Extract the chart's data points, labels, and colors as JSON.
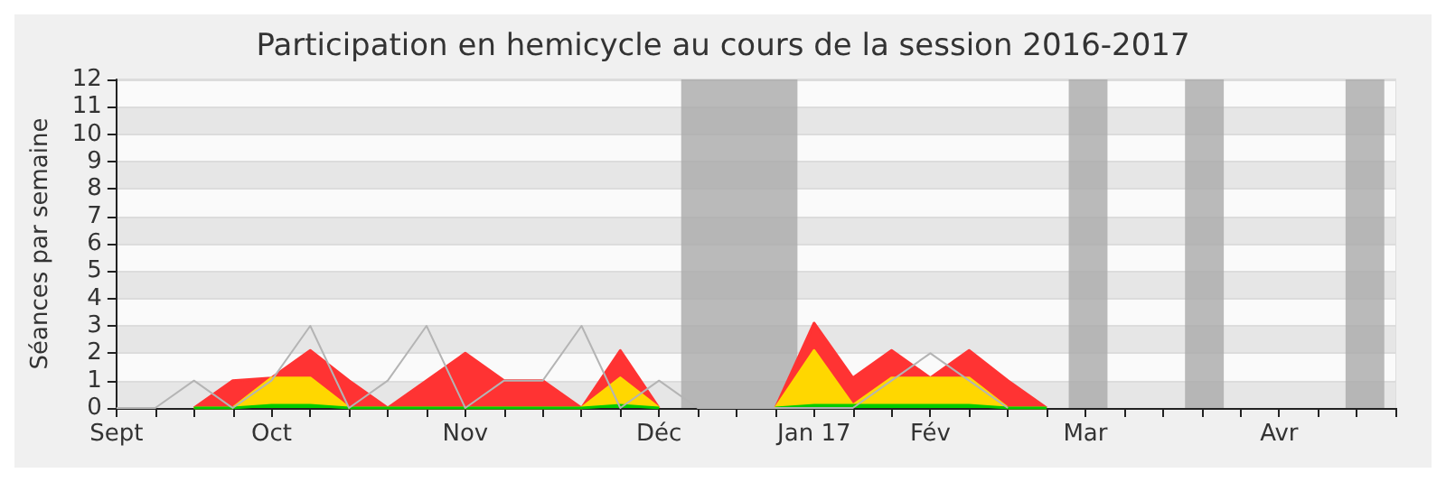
{
  "chart_data": {
    "type": "area",
    "title": "Participation en hemicycle au cours de la session 2016-2017",
    "ylabel": "Séances par semaine",
    "x": [
      "2016-09-07",
      "2016-09-14",
      "2016-09-21",
      "2016-09-28",
      "2016-10-05",
      "2016-10-12",
      "2016-10-19",
      "2016-10-26",
      "2016-11-02",
      "2016-11-09",
      "2016-11-16",
      "2016-11-23",
      "2016-11-30",
      "2016-12-07",
      "2016-12-14",
      "2016-12-21",
      "2016-12-28",
      "2017-01-04",
      "2017-01-11",
      "2017-01-18",
      "2017-01-25",
      "2017-02-01",
      "2017-02-08",
      "2017-02-15",
      "2017-02-22"
    ],
    "stacked": true,
    "series": [
      {
        "color": "#00cc00",
        "values": [
          null,
          null,
          0,
          0,
          0.1,
          0.1,
          0,
          0,
          0,
          0,
          0,
          0,
          0,
          0.1,
          0,
          null,
          null,
          0,
          0.1,
          0.1,
          0.1,
          0.1,
          0.1,
          0,
          0
        ]
      },
      {
        "color": "#ffd700",
        "values": [
          null,
          null,
          0,
          0,
          1,
          1,
          0,
          0,
          0,
          0,
          0,
          0,
          0,
          1,
          0,
          null,
          null,
          0,
          2,
          0,
          1,
          1,
          1,
          0,
          0
        ]
      },
      {
        "color": "#ff3333",
        "values": [
          null,
          null,
          0,
          1,
          0,
          1,
          1,
          0,
          1,
          2,
          1,
          1,
          0,
          1,
          0,
          null,
          null,
          0,
          1,
          1,
          1,
          0,
          1,
          1,
          0
        ]
      },
      {
        "type": "line",
        "color": "#b4b4b4",
        "values": [
          0,
          0,
          1,
          0,
          1,
          3,
          0,
          1,
          3,
          0,
          1,
          1,
          3,
          0,
          1,
          0,
          0,
          0,
          0,
          0,
          1,
          2,
          1,
          0,
          null
        ]
      }
    ],
    "xlim": [
      "2016-09-07",
      "2017-04-26"
    ],
    "xticks": [
      {
        "value": "2016-09-07",
        "label": "Sept"
      },
      {
        "value": "2016-09-14",
        "label": null
      },
      {
        "value": "2016-09-21",
        "label": null
      },
      {
        "value": "2016-09-28",
        "label": null
      },
      {
        "value": "2016-10-05",
        "label": "Oct"
      },
      {
        "value": "2016-10-12",
        "label": null
      },
      {
        "value": "2016-10-19",
        "label": null
      },
      {
        "value": "2016-10-26",
        "label": null
      },
      {
        "value": "2016-11-02",
        "label": null
      },
      {
        "value": "2016-11-09",
        "label": "Nov"
      },
      {
        "value": "2016-11-16",
        "label": null
      },
      {
        "value": "2016-11-23",
        "label": null
      },
      {
        "value": "2016-11-30",
        "label": null
      },
      {
        "value": "2016-12-07",
        "label": null
      },
      {
        "value": "2016-12-14",
        "label": "Déc"
      },
      {
        "value": "2016-12-21",
        "label": null
      },
      {
        "value": "2016-12-28",
        "label": null
      },
      {
        "value": "2017-01-04",
        "label": null
      },
      {
        "value": "2017-01-11",
        "label": "Jan 17"
      },
      {
        "value": "2017-01-18",
        "label": null
      },
      {
        "value": "2017-01-25",
        "label": null
      },
      {
        "value": "2017-02-01",
        "label": "Fév"
      },
      {
        "value": "2017-02-08",
        "label": null
      },
      {
        "value": "2017-02-15",
        "label": null
      },
      {
        "value": "2017-02-22",
        "label": null
      },
      {
        "value": "2017-03-01",
        "label": "Mar"
      },
      {
        "value": "2017-03-08",
        "label": null
      },
      {
        "value": "2017-03-15",
        "label": null
      },
      {
        "value": "2017-03-22",
        "label": null
      },
      {
        "value": "2017-03-29",
        "label": null
      },
      {
        "value": "2017-04-05",
        "label": "Avr"
      },
      {
        "value": "2017-04-12",
        "label": null
      },
      {
        "value": "2017-04-19",
        "label": null
      },
      {
        "value": "2017-04-26",
        "label": null
      }
    ],
    "ylim": [
      0,
      12
    ],
    "yticks": [
      0,
      1,
      2,
      3,
      4,
      5,
      6,
      7,
      8,
      9,
      10,
      11,
      12
    ],
    "grid": "y",
    "bands": [
      {
        "axis": "x",
        "from": "2016-12-18",
        "to": "2017-01-08",
        "color": "#aaaaaa"
      },
      {
        "axis": "x",
        "from": "2017-02-26",
        "to": "2017-03-05",
        "color": "#aaaaaa"
      },
      {
        "axis": "x",
        "from": "2017-03-19",
        "to": "2017-03-26",
        "color": "#aaaaaa"
      },
      {
        "axis": "x",
        "from": "2017-04-17",
        "to": "2017-04-24",
        "color": "#aaaaaa"
      }
    ]
  }
}
